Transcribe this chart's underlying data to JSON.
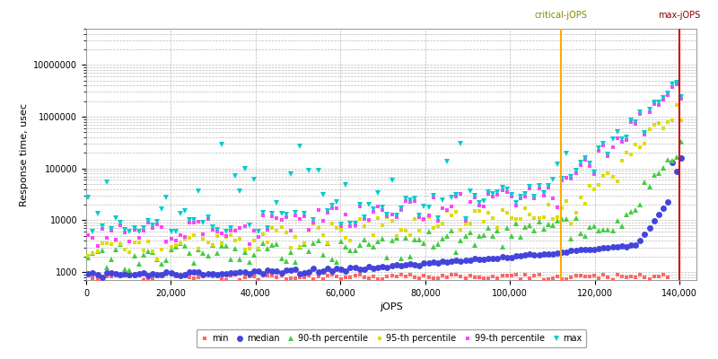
{
  "xlabel": "jOPS",
  "ylabel": "Response time, usec",
  "xlim": [
    0,
    144000
  ],
  "ylim_log": [
    700,
    50000000
  ],
  "critical_jops": 112000,
  "max_jops": 140000,
  "critical_label": "critical-jOPS",
  "max_label": "max-jOPS",
  "series": {
    "min": {
      "color": "#ff6666",
      "marker": "s",
      "ms": 3,
      "label": "min"
    },
    "median": {
      "color": "#4444dd",
      "marker": "o",
      "ms": 5,
      "label": "median"
    },
    "p90": {
      "color": "#44cc44",
      "marker": "^",
      "ms": 5,
      "label": "90-th percentile"
    },
    "p95": {
      "color": "#dddd00",
      "marker": "s",
      "ms": 3,
      "label": "95-th percentile"
    },
    "p99": {
      "color": "#ff44ff",
      "marker": "s",
      "ms": 3,
      "label": "99-th percentile"
    },
    "max": {
      "color": "#00cccc",
      "marker": "v",
      "ms": 5,
      "label": "max"
    }
  },
  "background_color": "#ffffff",
  "grid_color": "#bbbbbb",
  "legend_fontsize": 7,
  "axis_fontsize": 8
}
